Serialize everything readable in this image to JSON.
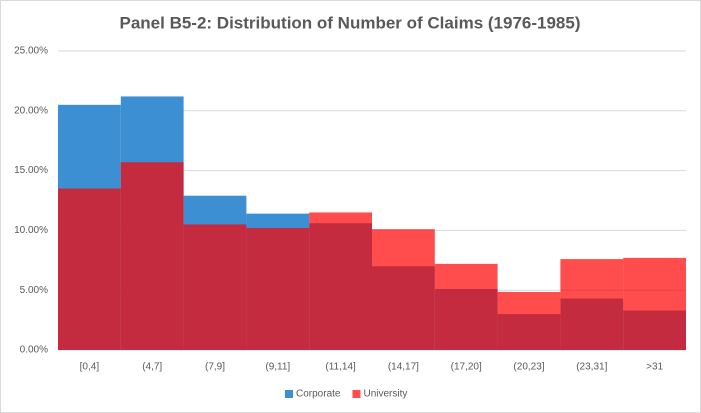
{
  "chart_data": {
    "type": "overlapping-bar",
    "title": "Panel B5-2: Distribution of Number of Claims (1976-1985)",
    "categories": [
      "[0,4]",
      "(4,7]",
      "(7,9]",
      "(9,11]",
      "(11,14]",
      "(14,17]",
      "(17,20]",
      "(20,23]",
      "(23,31]",
      ">31"
    ],
    "series": [
      {
        "name": "Corporate",
        "color": "#3b8fd2",
        "values": [
          20.5,
          21.2,
          12.9,
          11.4,
          10.6,
          7.0,
          5.1,
          3.0,
          4.3,
          3.3
        ]
      },
      {
        "name": "University",
        "color": "#ff0000",
        "values": [
          13.5,
          15.7,
          10.5,
          10.2,
          11.5,
          10.1,
          7.2,
          4.85,
          7.6,
          7.7
        ]
      }
    ],
    "ylim": [
      0,
      25
    ],
    "yticks": [
      {
        "value": 0,
        "label": "0.00%"
      },
      {
        "value": 5,
        "label": "5.00%"
      },
      {
        "value": 10,
        "label": "10.00%"
      },
      {
        "value": 15,
        "label": "15.00%"
      },
      {
        "value": 20,
        "label": "20.00%"
      },
      {
        "value": 25,
        "label": "25.00%"
      }
    ],
    "grid": true,
    "legend": "bottom"
  }
}
